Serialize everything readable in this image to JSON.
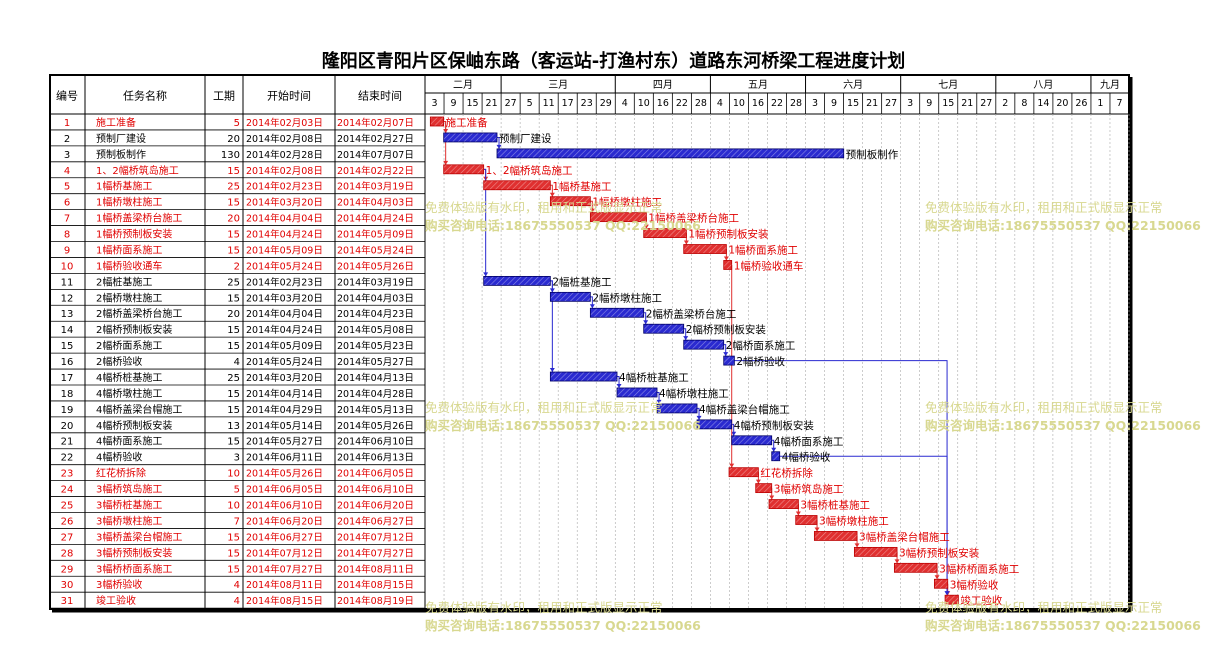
{
  "title": "隆阳区青阳片区保岫东路（客运站-打渔村东）道路东河桥梁工程进度计划",
  "columns": {
    "id": "编号",
    "name": "任务名称",
    "dur": "工期",
    "start": "开始时间",
    "end": "结束时间"
  },
  "watermark": {
    "line1": "免费体验版有水印，租用和正式版显示正常",
    "line2": "购买咨询电话:18675550537 QQ:22150066"
  },
  "chart_data": {
    "type": "gantt",
    "months": [
      {
        "label": "二月",
        "days": [
          "3",
          "9",
          "15",
          "21"
        ]
      },
      {
        "label": "三月",
        "days": [
          "27",
          "5",
          "11",
          "17",
          "23",
          "29"
        ]
      },
      {
        "label": "四月",
        "days": [
          "4",
          "10",
          "16",
          "22",
          "28"
        ]
      },
      {
        "label": "五月",
        "days": [
          "4",
          "10",
          "16",
          "22",
          "28"
        ]
      },
      {
        "label": "六月",
        "days": [
          "3",
          "9",
          "15",
          "21",
          "27"
        ]
      },
      {
        "label": "七月",
        "days": [
          "3",
          "9",
          "15",
          "21",
          "27"
        ]
      },
      {
        "label": "八月",
        "days": [
          "2",
          "8",
          "14",
          "20",
          "26"
        ]
      },
      {
        "label": "九月",
        "days": [
          "1",
          "7"
        ]
      }
    ],
    "tasks": [
      {
        "id": "1",
        "name": "施工准备",
        "dur": "5",
        "start": "2014年02月03日",
        "end": "2014年02月07日",
        "crit": true
      },
      {
        "id": "2",
        "name": "预制厂建设",
        "dur": "20",
        "start": "2014年02月08日",
        "end": "2014年02月27日",
        "crit": false
      },
      {
        "id": "3",
        "name": "预制板制作",
        "dur": "130",
        "start": "2014年02月28日",
        "end": "2014年07月07日",
        "crit": false
      },
      {
        "id": "4",
        "name": "1、2幅桥筑岛施工",
        "dur": "15",
        "start": "2014年02月08日",
        "end": "2014年02月22日",
        "crit": true
      },
      {
        "id": "5",
        "name": "1幅桥基施工",
        "dur": "25",
        "start": "2014年02月23日",
        "end": "2014年03月19日",
        "crit": true
      },
      {
        "id": "6",
        "name": "1幅桥墩柱施工",
        "dur": "15",
        "start": "2014年03月20日",
        "end": "2014年04月03日",
        "crit": true
      },
      {
        "id": "7",
        "name": "1幅桥盖梁桥台施工",
        "dur": "20",
        "start": "2014年04月04日",
        "end": "2014年04月24日",
        "crit": true
      },
      {
        "id": "8",
        "name": "1幅桥预制板安装",
        "dur": "15",
        "start": "2014年04月24日",
        "end": "2014年05月09日",
        "crit": true
      },
      {
        "id": "9",
        "name": "1幅桥面系施工",
        "dur": "15",
        "start": "2014年05月09日",
        "end": "2014年05月24日",
        "crit": true
      },
      {
        "id": "10",
        "name": "1幅桥验收通车",
        "dur": "2",
        "start": "2014年05月24日",
        "end": "2014年05月26日",
        "crit": true
      },
      {
        "id": "11",
        "name": "2幅桩基施工",
        "dur": "25",
        "start": "2014年02月23日",
        "end": "2014年03月19日",
        "crit": false
      },
      {
        "id": "12",
        "name": "2幅桥墩柱施工",
        "dur": "15",
        "start": "2014年03月20日",
        "end": "2014年04月03日",
        "crit": false
      },
      {
        "id": "13",
        "name": "2幅桥盖梁桥台施工",
        "dur": "20",
        "start": "2014年04月04日",
        "end": "2014年04月23日",
        "crit": false
      },
      {
        "id": "14",
        "name": "2幅桥预制板安装",
        "dur": "15",
        "start": "2014年04月24日",
        "end": "2014年05月08日",
        "crit": false
      },
      {
        "id": "15",
        "name": "2幅桥面系施工",
        "dur": "15",
        "start": "2014年05月09日",
        "end": "2014年05月23日",
        "crit": false
      },
      {
        "id": "16",
        "name": "2幅桥验收",
        "dur": "4",
        "start": "2014年05月24日",
        "end": "2014年05月27日",
        "crit": false
      },
      {
        "id": "17",
        "name": "4幅桥桩基施工",
        "dur": "25",
        "start": "2014年03月20日",
        "end": "2014年04月13日",
        "crit": false
      },
      {
        "id": "18",
        "name": "4幅桥墩柱施工",
        "dur": "15",
        "start": "2014年04月14日",
        "end": "2014年04月28日",
        "crit": false
      },
      {
        "id": "19",
        "name": "4幅桥盖梁台帽施工",
        "dur": "15",
        "start": "2014年04月29日",
        "end": "2014年05月13日",
        "crit": false
      },
      {
        "id": "20",
        "name": "4幅桥预制板安装",
        "dur": "13",
        "start": "2014年05月14日",
        "end": "2014年05月26日",
        "crit": false
      },
      {
        "id": "21",
        "name": "4幅桥面系施工",
        "dur": "15",
        "start": "2014年05月27日",
        "end": "2014年06月10日",
        "crit": false
      },
      {
        "id": "22",
        "name": "4幅桥验收",
        "dur": "3",
        "start": "2014年06月11日",
        "end": "2014年06月13日",
        "crit": false
      },
      {
        "id": "23",
        "name": "红花桥拆除",
        "dur": "10",
        "start": "2014年05月26日",
        "end": "2014年06月05日",
        "crit": true
      },
      {
        "id": "24",
        "name": "3幅桥筑岛施工",
        "dur": "5",
        "start": "2014年06月05日",
        "end": "2014年06月10日",
        "crit": true
      },
      {
        "id": "25",
        "name": "3幅桥桩基施工",
        "dur": "10",
        "start": "2014年06月10日",
        "end": "2014年06月20日",
        "crit": true
      },
      {
        "id": "26",
        "name": "3幅桥墩柱施工",
        "dur": "7",
        "start": "2014年06月20日",
        "end": "2014年06月27日",
        "crit": true
      },
      {
        "id": "27",
        "name": "3幅桥盖梁台帽施工",
        "dur": "15",
        "start": "2014年06月27日",
        "end": "2014年07月12日",
        "crit": true
      },
      {
        "id": "28",
        "name": "3幅桥预制板安装",
        "dur": "15",
        "start": "2014年07月12日",
        "end": "2014年07月27日",
        "crit": true
      },
      {
        "id": "29",
        "name": "3幅桥桥面系施工",
        "dur": "15",
        "start": "2014年07月27日",
        "end": "2014年08月11日",
        "crit": true
      },
      {
        "id": "30",
        "name": "3幅桥验收",
        "dur": "4",
        "start": "2014年08月11日",
        "end": "2014年08月15日",
        "crit": true
      },
      {
        "id": "31",
        "name": "竣工验收",
        "dur": "4",
        "start": "2014年08月15日",
        "end": "2014年08月19日",
        "crit": true
      }
    ],
    "bar_labels": [
      "施工准备",
      "预制厂建设",
      "预制板制作",
      "1、2幅桥筑岛施工",
      "1幅桥基施工",
      "1幅桥墩柱施工",
      "1幅桥盖梁桥台施工",
      "1幅桥预制板安装",
      "1幅桥面系施工",
      "1幅桥验收通车",
      "2幅桩基施工",
      "2幅桥墩柱施工",
      "2幅桥盖梁桥台施工",
      "2幅桥预制板安装",
      "2幅桥面系施工",
      "2幅桥验收",
      "4幅桥桩基施工",
      "4幅桥墩柱施工",
      "4幅桥盖梁台帽施工",
      "4幅桥预制板安装",
      "4幅桥面系施工",
      "4幅桥验收",
      "红花桥拆除",
      "3幅桥筑岛施工",
      "3幅桥桩基施工",
      "3幅桥墩柱施工",
      "3幅桥盖梁台帽施工",
      "3幅桥预制板安装",
      "3幅桥桥面系施工",
      "3幅桥验收",
      "竣工验收"
    ],
    "colors": {
      "critical": "#e03030",
      "normal": "#2a2ad0",
      "link": "#2a2ad0",
      "crit_link": "#e03030",
      "watermark": "#d8d890"
    }
  }
}
